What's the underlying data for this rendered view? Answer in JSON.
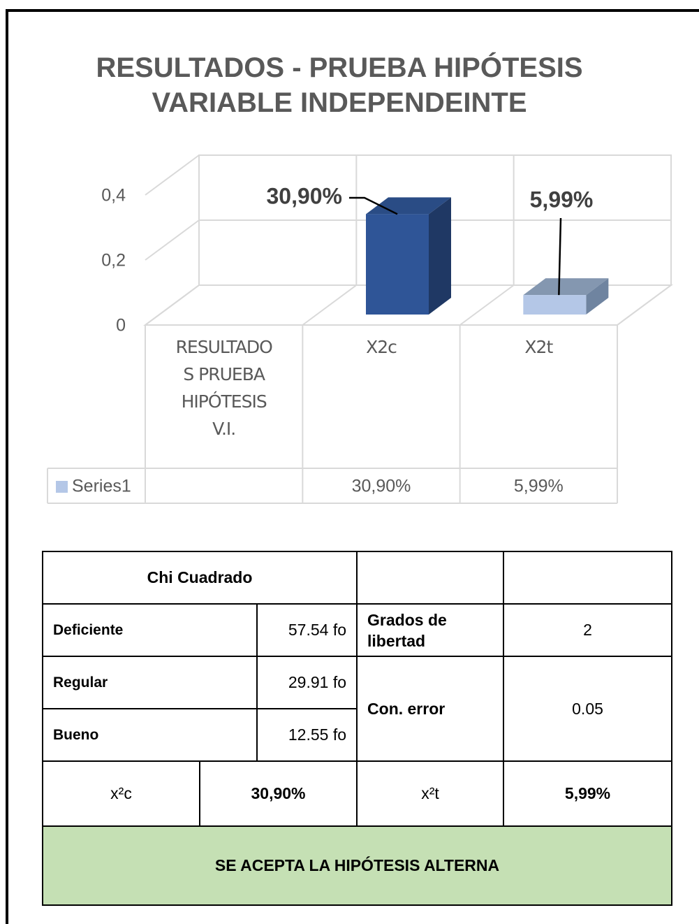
{
  "chart_data": {
    "type": "bar3d",
    "title": "RESULTADOS - PRUEBA HIPÓTESIS VARIABLE INDEPENDEINTE",
    "categories": [
      "RESULTADOS PRUEBA HIPÓTESIS V.I.",
      "X2c",
      "X2t"
    ],
    "series": [
      {
        "name": "Series1",
        "color": "#b4c7e7",
        "values": [
          null,
          0.309,
          0.0599
        ],
        "value_labels": [
          null,
          "30,90%",
          "5,99%"
        ],
        "point_colors": [
          null,
          "#2f5597",
          "#b4c7e7"
        ]
      }
    ],
    "ylim": [
      0,
      0.4
    ],
    "yticks": [
      0,
      {
        "value": 0.2,
        "label": "0,2"
      },
      {
        "value": 0.4,
        "label": "0,4"
      }
    ],
    "grid": true,
    "data_table": true
  },
  "table": {
    "title": "Chi Cuadrado",
    "rows": [
      [
        "Deficiente",
        "57.54 fo"
      ],
      [
        "Regular",
        "29.91 fo"
      ],
      [
        "Bueno",
        "12.55 fo"
      ]
    ],
    "degrees": [
      "Grados de libertad",
      "2"
    ],
    "error": [
      "Con. error",
      "0.05"
    ],
    "x2c": [
      "x²c",
      "30,90%"
    ],
    "x2t": [
      "x²t",
      "5,99%"
    ],
    "conclusion": "SE ACEPTA LA HIPÓTESIS ALTERNA"
  }
}
